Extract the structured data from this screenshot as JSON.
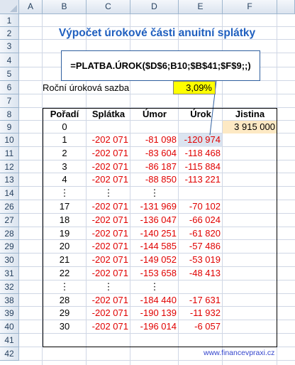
{
  "columns": [
    "A",
    "B",
    "C",
    "D",
    "E",
    "F"
  ],
  "rows": [
    "1",
    "2",
    "3",
    "4",
    "5",
    "6",
    "7",
    "8",
    "9",
    "10",
    "11",
    "12",
    "13",
    "14",
    "26",
    "27",
    "28",
    "29",
    "30",
    "31",
    "32",
    "38",
    "39",
    "40",
    "41",
    "42"
  ],
  "title": "Výpočet úrokové části anuitní splátky",
  "formula": "=PLATBA.ÚROK($D$6;B10;$B$41;$F$9;;)",
  "rate": {
    "label": "Roční úroková sazba",
    "value": "3,09%"
  },
  "headers": {
    "poradi": "Pořadí",
    "splatka": "Splátka",
    "umor": "Úmor",
    "urok": "Úrok",
    "jistina": "Jistina"
  },
  "table": [
    {
      "poradi": "0",
      "splatka": "",
      "umor": "",
      "urok": "",
      "jistina": "3 915 000"
    },
    {
      "poradi": "1",
      "splatka": "-202 071",
      "umor": "-81 098",
      "urok": "-120 974",
      "jistina": ""
    },
    {
      "poradi": "2",
      "splatka": "-202 071",
      "umor": "-83 604",
      "urok": "-118 468",
      "jistina": ""
    },
    {
      "poradi": "3",
      "splatka": "-202 071",
      "umor": "-86 187",
      "urok": "-115 884",
      "jistina": ""
    },
    {
      "poradi": "4",
      "splatka": "-202 071",
      "umor": "-88 850",
      "urok": "-113 221",
      "jistina": ""
    },
    {
      "poradi": "⋮",
      "splatka": "⋮",
      "umor": "⋮",
      "urok": "",
      "jistina": ""
    },
    {
      "poradi": "17",
      "splatka": "-202 071",
      "umor": "-131 969",
      "urok": "-70 102",
      "jistina": ""
    },
    {
      "poradi": "18",
      "splatka": "-202 071",
      "umor": "-136 047",
      "urok": "-66 024",
      "jistina": ""
    },
    {
      "poradi": "19",
      "splatka": "-202 071",
      "umor": "-140 251",
      "urok": "-61 820",
      "jistina": ""
    },
    {
      "poradi": "20",
      "splatka": "-202 071",
      "umor": "-144 585",
      "urok": "-57 486",
      "jistina": ""
    },
    {
      "poradi": "21",
      "splatka": "-202 071",
      "umor": "-149 052",
      "urok": "-53 019",
      "jistina": ""
    },
    {
      "poradi": "22",
      "splatka": "-202 071",
      "umor": "-153 658",
      "urok": "-48 413",
      "jistina": ""
    },
    {
      "poradi": "⋮",
      "splatka": "⋮",
      "umor": "⋮",
      "urok": "",
      "jistina": ""
    },
    {
      "poradi": "28",
      "splatka": "-202 071",
      "umor": "-184 440",
      "urok": "-17 631",
      "jistina": ""
    },
    {
      "poradi": "29",
      "splatka": "-202 071",
      "umor": "-190 139",
      "urok": "-11 932",
      "jistina": ""
    },
    {
      "poradi": "30",
      "splatka": "-202 071",
      "umor": "-196 014",
      "urok": "-6 057",
      "jistina": ""
    }
  ],
  "link": "www.financevpraxi.cz"
}
